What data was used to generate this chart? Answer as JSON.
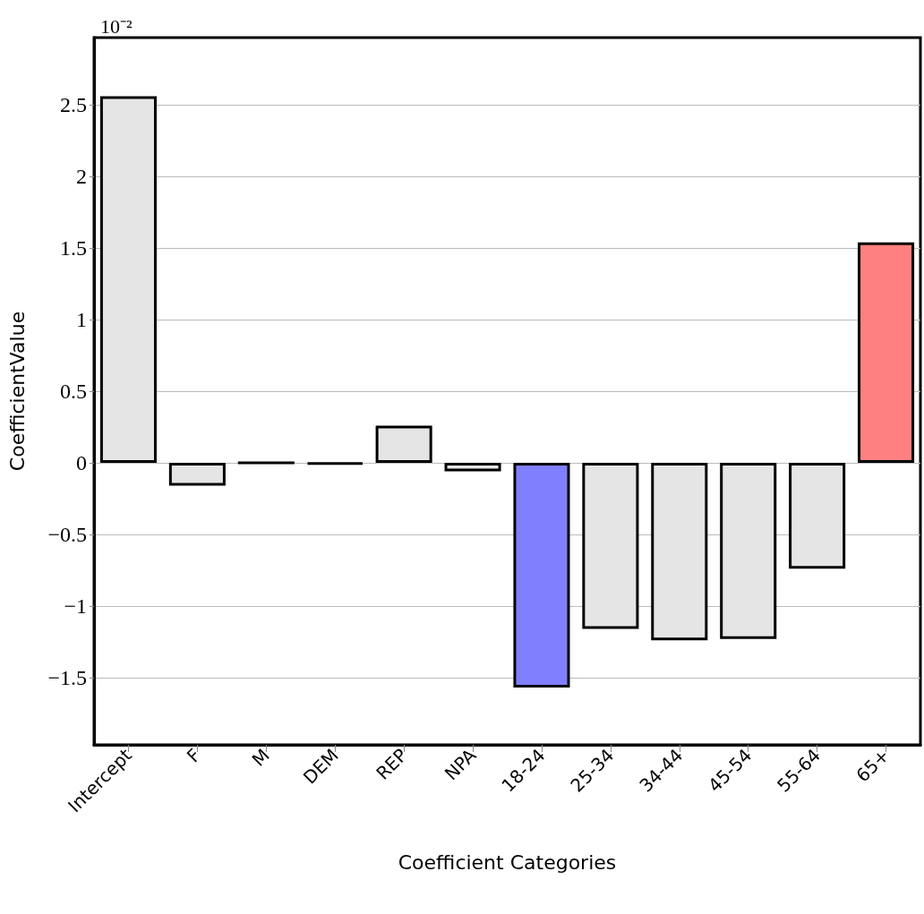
{
  "chart_data": {
    "type": "bar",
    "xlabel": "Coefficient Categories",
    "ylabel": "CoefficientValue",
    "annotations": [
      "10⁻²"
    ],
    "categories": [
      "Intercept",
      "F",
      "M",
      "DEM",
      "REP",
      "NPA",
      "18-24",
      "25-34",
      "34-44",
      "45-54",
      "55-64",
      "65+"
    ],
    "values": [
      2.56,
      -0.16,
      0,
      -0.01,
      0.26,
      -0.06,
      -1.57,
      -1.16,
      -1.24,
      -1.23,
      -0.74,
      1.54
    ],
    "colors": [
      "#e5e5e5",
      "#e5e5e5",
      "#000000",
      "#000000",
      "#e5e5e5",
      "#e5e5e5",
      "#8080ff",
      "#e5e5e5",
      "#e5e5e5",
      "#e5e5e5",
      "#e5e5e5",
      "#ff8080"
    ],
    "ylim": [
      -1.97,
      2.97
    ],
    "yticks": [
      -1.5,
      -1,
      -0.5,
      0,
      0.5,
      1,
      1.5,
      2,
      2.5
    ],
    "grid": "y"
  }
}
